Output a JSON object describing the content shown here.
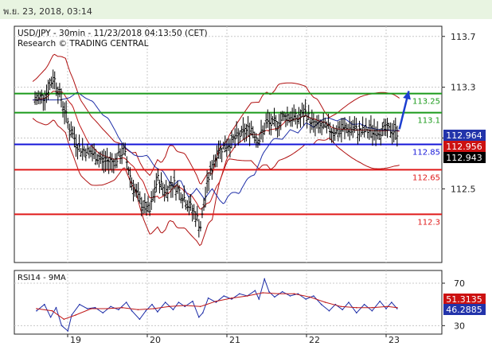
{
  "header": {
    "timestamp": "พ.ย. 23, 2018, 03:14"
  },
  "chart_data": [
    {
      "type": "candlestick",
      "title": "USD/JPY - 30min - 11/23/2018 04:13:50 (CET)",
      "subtitle": "Research © TRADING CENTRAL",
      "ylim": [
        111.92,
        113.78
      ],
      "yticks": [
        "113.7",
        "113.3",
        "112.9",
        "112.5"
      ],
      "xticks": [
        "19",
        "20",
        "21",
        "22",
        "23"
      ],
      "grid": true,
      "levels": [
        {
          "value": 113.25,
          "label": "113.25",
          "color": "#1a9a1a"
        },
        {
          "value": 113.1,
          "label": "113.1",
          "color": "#1a9a1a"
        },
        {
          "value": 112.85,
          "label": "112.85",
          "color": "#1515d8"
        },
        {
          "value": 112.65,
          "label": "112.65",
          "color": "#e01a1a"
        },
        {
          "value": 112.3,
          "label": "112.3",
          "color": "#e01a1a"
        }
      ],
      "price_tags": [
        {
          "value": 112.964,
          "label": "112.964",
          "color": "#2233aa"
        },
        {
          "value": 112.956,
          "label": "112.956",
          "color": "#cc1111"
        },
        {
          "value": 112.943,
          "label": "112.943",
          "color": "#000000"
        }
      ],
      "forecast_arrow": {
        "from": [
          23.15,
          112.97
        ],
        "to": [
          23.27,
          113.27
        ],
        "color": "#1c3fd0",
        "direction": "up"
      },
      "price_path": [
        [
          18.5,
          113.2
        ],
        [
          18.62,
          113.25
        ],
        [
          18.72,
          113.38
        ],
        [
          18.82,
          113.2
        ],
        [
          18.92,
          112.98
        ],
        [
          19.05,
          112.82
        ],
        [
          19.2,
          112.78
        ],
        [
          19.35,
          112.72
        ],
        [
          19.5,
          112.72
        ],
        [
          19.62,
          112.8
        ],
        [
          19.72,
          112.55
        ],
        [
          19.82,
          112.4
        ],
        [
          19.95,
          112.32
        ],
        [
          20.05,
          112.58
        ],
        [
          20.15,
          112.48
        ],
        [
          20.25,
          112.55
        ],
        [
          20.4,
          112.42
        ],
        [
          20.55,
          112.28
        ],
        [
          20.6,
          112.2
        ],
        [
          20.7,
          112.58
        ],
        [
          20.82,
          112.8
        ],
        [
          20.95,
          112.85
        ],
        [
          21.1,
          112.92
        ],
        [
          21.25,
          112.98
        ],
        [
          21.35,
          112.88
        ],
        [
          21.45,
          113.02
        ],
        [
          21.55,
          113.0
        ],
        [
          21.7,
          113.08
        ],
        [
          21.85,
          113.05
        ],
        [
          21.95,
          113.1
        ],
        [
          22.05,
          113.0
        ],
        [
          22.2,
          112.98
        ],
        [
          22.35,
          112.95
        ],
        [
          22.5,
          112.98
        ],
        [
          22.65,
          112.95
        ],
        [
          22.8,
          112.96
        ],
        [
          22.95,
          112.96
        ],
        [
          23.08,
          112.96
        ],
        [
          23.15,
          112.94
        ]
      ]
    },
    {
      "type": "line",
      "title": "RSI14 - 9MA",
      "ylim": [
        22,
        82
      ],
      "yticks": [
        "70",
        "30"
      ],
      "xticks": [
        "19",
        "20",
        "21",
        "22",
        "23"
      ],
      "grid": true,
      "tags": [
        {
          "value": 51.3135,
          "label": "51.3135",
          "color": "#cc1111"
        },
        {
          "value": 46.2885,
          "label": "46.2885",
          "color": "#2233aa"
        }
      ],
      "series": [
        {
          "name": "RSI14",
          "color": "#1e2ea8",
          "points": [
            [
              18.5,
              44
            ],
            [
              18.6,
              50
            ],
            [
              18.68,
              38
            ],
            [
              18.75,
              47
            ],
            [
              18.82,
              30
            ],
            [
              18.9,
              25
            ],
            [
              18.95,
              40
            ],
            [
              19.05,
              50
            ],
            [
              19.15,
              46
            ],
            [
              19.25,
              47
            ],
            [
              19.35,
              42
            ],
            [
              19.45,
              48
            ],
            [
              19.55,
              45
            ],
            [
              19.65,
              52
            ],
            [
              19.72,
              44
            ],
            [
              19.82,
              36
            ],
            [
              19.9,
              44
            ],
            [
              19.98,
              50
            ],
            [
              20.05,
              43
            ],
            [
              20.15,
              52
            ],
            [
              20.25,
              45
            ],
            [
              20.32,
              52
            ],
            [
              20.4,
              48
            ],
            [
              20.5,
              53
            ],
            [
              20.58,
              38
            ],
            [
              20.63,
              42
            ],
            [
              20.7,
              56
            ],
            [
              20.8,
              52
            ],
            [
              20.9,
              58
            ],
            [
              21.0,
              55
            ],
            [
              21.1,
              60
            ],
            [
              21.2,
              58
            ],
            [
              21.3,
              63
            ],
            [
              21.35,
              55
            ],
            [
              21.42,
              74
            ],
            [
              21.48,
              62
            ],
            [
              21.55,
              57
            ],
            [
              21.65,
              62
            ],
            [
              21.75,
              58
            ],
            [
              21.85,
              60
            ],
            [
              21.95,
              55
            ],
            [
              22.05,
              58
            ],
            [
              22.15,
              50
            ],
            [
              22.25,
              44
            ],
            [
              22.33,
              50
            ],
            [
              22.42,
              45
            ],
            [
              22.5,
              52
            ],
            [
              22.6,
              42
            ],
            [
              22.7,
              50
            ],
            [
              22.8,
              44
            ],
            [
              22.9,
              53
            ],
            [
              22.98,
              46
            ],
            [
              23.05,
              52
            ],
            [
              23.12,
              46
            ]
          ]
        },
        {
          "name": "9MA",
          "color": "#c01818",
          "points": [
            [
              18.5,
              46
            ],
            [
              18.7,
              44
            ],
            [
              18.85,
              36
            ],
            [
              19.0,
              40
            ],
            [
              19.2,
              46
            ],
            [
              19.4,
              46
            ],
            [
              19.6,
              47
            ],
            [
              19.8,
              45
            ],
            [
              20.0,
              46
            ],
            [
              20.2,
              48
            ],
            [
              20.4,
              49
            ],
            [
              20.6,
              48
            ],
            [
              20.8,
              53
            ],
            [
              21.0,
              56
            ],
            [
              21.2,
              58
            ],
            [
              21.4,
              61
            ],
            [
              21.6,
              60
            ],
            [
              21.8,
              60
            ],
            [
              22.0,
              57
            ],
            [
              22.2,
              52
            ],
            [
              22.4,
              48
            ],
            [
              22.6,
              47
            ],
            [
              22.8,
              47
            ],
            [
              23.0,
              48
            ],
            [
              23.12,
              47
            ]
          ]
        }
      ]
    }
  ]
}
